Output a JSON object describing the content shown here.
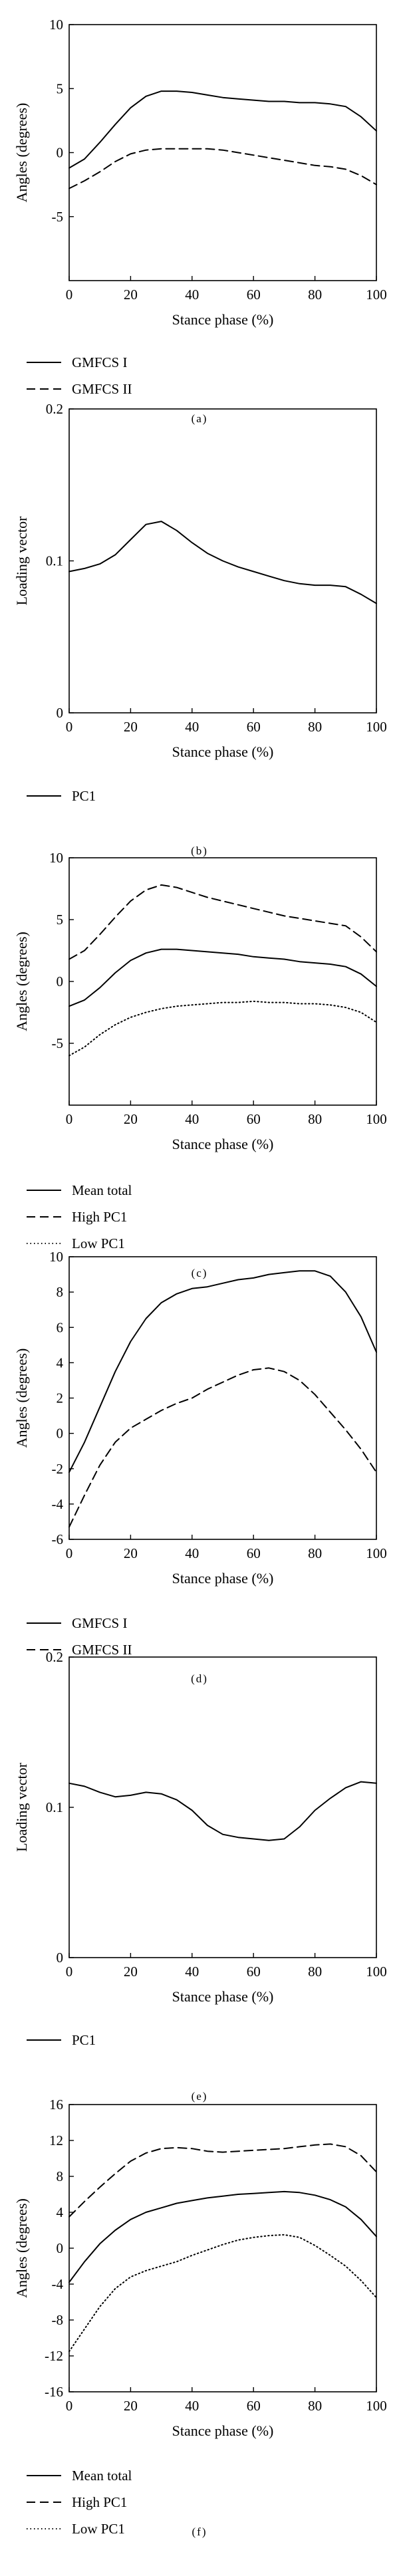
{
  "chart_data": [
    {
      "panel": "(a)",
      "type": "line",
      "xlabel": "Stance phase (%)",
      "ylabel": "Angles (degrees)",
      "xlim": [
        0,
        100
      ],
      "ylim": [
        -10,
        10
      ],
      "xticks": [
        "0",
        "20",
        "40",
        "60",
        "80",
        "100"
      ],
      "yticks": [
        "-5",
        "0",
        "5",
        "10"
      ],
      "grid": false,
      "legend_position": "below",
      "x": [
        0,
        5,
        10,
        15,
        20,
        25,
        30,
        35,
        40,
        45,
        50,
        55,
        60,
        65,
        70,
        75,
        80,
        85,
        90,
        95,
        100
      ],
      "series": [
        {
          "name": "GMFCS I",
          "style": "solid",
          "values": [
            -1.2,
            -0.5,
            0.8,
            2.2,
            3.5,
            4.4,
            4.8,
            4.8,
            4.7,
            4.5,
            4.3,
            4.2,
            4.1,
            4.0,
            4.0,
            3.9,
            3.9,
            3.8,
            3.6,
            2.8,
            1.7
          ]
        },
        {
          "name": "GMFCS II",
          "style": "dashed",
          "values": [
            -2.8,
            -2.2,
            -1.5,
            -0.7,
            -0.1,
            0.2,
            0.3,
            0.3,
            0.3,
            0.3,
            0.2,
            0.0,
            -0.2,
            -0.4,
            -0.6,
            -0.8,
            -1.0,
            -1.1,
            -1.3,
            -1.8,
            -2.5
          ]
        }
      ]
    },
    {
      "panel": "(b)",
      "type": "line",
      "xlabel": "Stance phase (%)",
      "ylabel": "Loading vector",
      "xlim": [
        0,
        100
      ],
      "ylim": [
        0,
        0.2
      ],
      "xticks": [
        "0",
        "20",
        "40",
        "60",
        "80",
        "100"
      ],
      "yticks": [
        "0",
        "0.1",
        "0.2"
      ],
      "grid": false,
      "legend_position": "below",
      "x": [
        0,
        5,
        10,
        15,
        20,
        25,
        30,
        35,
        40,
        45,
        50,
        55,
        60,
        65,
        70,
        75,
        80,
        85,
        90,
        95,
        100
      ],
      "series": [
        {
          "name": "PC1",
          "style": "solid",
          "values": [
            0.093,
            0.095,
            0.098,
            0.104,
            0.114,
            0.124,
            0.126,
            0.12,
            0.112,
            0.105,
            0.1,
            0.096,
            0.093,
            0.09,
            0.087,
            0.085,
            0.084,
            0.084,
            0.083,
            0.078,
            0.072
          ]
        }
      ]
    },
    {
      "panel": "(c)",
      "type": "line",
      "xlabel": "Stance phase (%)",
      "ylabel": "Angles (degrees)",
      "xlim": [
        0,
        100
      ],
      "ylim": [
        -10,
        10
      ],
      "xticks": [
        "0",
        "20",
        "40",
        "60",
        "80",
        "100"
      ],
      "yticks": [
        "-5",
        "0",
        "5",
        "10"
      ],
      "grid": false,
      "legend_position": "below",
      "x": [
        0,
        5,
        10,
        15,
        20,
        25,
        30,
        35,
        40,
        45,
        50,
        55,
        60,
        65,
        70,
        75,
        80,
        85,
        90,
        95,
        100
      ],
      "series": [
        {
          "name": "Mean total",
          "style": "solid",
          "values": [
            -2.0,
            -1.5,
            -0.5,
            0.7,
            1.7,
            2.3,
            2.6,
            2.6,
            2.5,
            2.4,
            2.3,
            2.2,
            2.0,
            1.9,
            1.8,
            1.6,
            1.5,
            1.4,
            1.2,
            0.6,
            -0.4
          ]
        },
        {
          "name": "High PC1",
          "style": "dashed",
          "values": [
            1.8,
            2.5,
            3.8,
            5.2,
            6.5,
            7.4,
            7.8,
            7.6,
            7.2,
            6.8,
            6.5,
            6.2,
            5.9,
            5.6,
            5.3,
            5.1,
            4.9,
            4.7,
            4.5,
            3.6,
            2.4
          ]
        },
        {
          "name": "Low PC1",
          "style": "dotted",
          "values": [
            -6.0,
            -5.3,
            -4.3,
            -3.5,
            -2.9,
            -2.5,
            -2.2,
            -2.0,
            -1.9,
            -1.8,
            -1.7,
            -1.7,
            -1.6,
            -1.7,
            -1.7,
            -1.8,
            -1.8,
            -1.9,
            -2.1,
            -2.5,
            -3.3
          ]
        }
      ]
    },
    {
      "panel": "(d)",
      "type": "line",
      "xlabel": "Stance phase (%)",
      "ylabel": "Angles (degrees)",
      "xlim": [
        0,
        100
      ],
      "ylim": [
        -6,
        10
      ],
      "xticks": [
        "0",
        "20",
        "40",
        "60",
        "80",
        "100"
      ],
      "yticks": [
        "-6",
        "-4",
        "-2",
        "0",
        "2",
        "4",
        "6",
        "8",
        "10"
      ],
      "grid": false,
      "legend_position": "below",
      "x": [
        0,
        5,
        10,
        15,
        20,
        25,
        30,
        35,
        40,
        45,
        50,
        55,
        60,
        65,
        70,
        75,
        80,
        85,
        90,
        95,
        100
      ],
      "series": [
        {
          "name": "GMFCS I",
          "style": "solid",
          "values": [
            -2.2,
            -0.5,
            1.5,
            3.5,
            5.2,
            6.5,
            7.4,
            7.9,
            8.2,
            8.3,
            8.5,
            8.7,
            8.8,
            9.0,
            9.1,
            9.2,
            9.2,
            8.9,
            8.0,
            6.6,
            4.6
          ]
        },
        {
          "name": "GMFCS II",
          "style": "dashed",
          "values": [
            -5.3,
            -3.5,
            -1.8,
            -0.5,
            0.3,
            0.8,
            1.3,
            1.7,
            2.0,
            2.5,
            2.9,
            3.3,
            3.6,
            3.7,
            3.5,
            3.0,
            2.2,
            1.2,
            0.2,
            -0.9,
            -2.2
          ]
        }
      ]
    },
    {
      "panel": "(e)",
      "type": "line",
      "xlabel": "Stance phase (%)",
      "ylabel": "Loading vector",
      "xlim": [
        0,
        100
      ],
      "ylim": [
        0,
        0.2
      ],
      "xticks": [
        "0",
        "20",
        "40",
        "60",
        "80",
        "100"
      ],
      "yticks": [
        "0",
        "0.1",
        "0.2"
      ],
      "grid": false,
      "legend_position": "below",
      "x": [
        0,
        5,
        10,
        15,
        20,
        25,
        30,
        35,
        40,
        45,
        50,
        55,
        60,
        65,
        70,
        75,
        80,
        85,
        90,
        95,
        100
      ],
      "series": [
        {
          "name": "PC1",
          "style": "solid",
          "values": [
            0.116,
            0.114,
            0.11,
            0.107,
            0.108,
            0.11,
            0.109,
            0.105,
            0.098,
            0.088,
            0.082,
            0.08,
            0.079,
            0.078,
            0.079,
            0.087,
            0.098,
            0.106,
            0.113,
            0.117,
            0.116
          ]
        }
      ]
    },
    {
      "panel": "(f)",
      "type": "line",
      "xlabel": "Stance phase (%)",
      "ylabel": "Angles (degrees)",
      "xlim": [
        0,
        100
      ],
      "ylim": [
        -16,
        16
      ],
      "xticks": [
        "0",
        "20",
        "40",
        "60",
        "80",
        "100"
      ],
      "yticks": [
        "-16",
        "-12",
        "-8",
        "-4",
        "0",
        "4",
        "8",
        "12",
        "16"
      ],
      "grid": false,
      "legend_position": "below",
      "x": [
        0,
        5,
        10,
        15,
        20,
        25,
        30,
        35,
        40,
        45,
        50,
        55,
        60,
        65,
        70,
        75,
        80,
        85,
        90,
        95,
        100
      ],
      "series": [
        {
          "name": "Mean total",
          "style": "solid",
          "values": [
            -3.8,
            -1.5,
            0.5,
            2.0,
            3.2,
            4.0,
            4.5,
            5.0,
            5.3,
            5.6,
            5.8,
            6.0,
            6.1,
            6.2,
            6.3,
            6.2,
            5.9,
            5.4,
            4.6,
            3.2,
            1.3
          ]
        },
        {
          "name": "High PC1",
          "style": "dashed",
          "values": [
            3.5,
            5.2,
            6.8,
            8.3,
            9.7,
            10.6,
            11.1,
            11.2,
            11.1,
            10.8,
            10.7,
            10.8,
            10.9,
            11.0,
            11.1,
            11.3,
            11.5,
            11.6,
            11.3,
            10.3,
            8.5
          ]
        },
        {
          "name": "Low PC1",
          "style": "dotted",
          "values": [
            -11.5,
            -9.0,
            -6.5,
            -4.5,
            -3.2,
            -2.5,
            -2.0,
            -1.5,
            -0.8,
            -0.2,
            0.4,
            0.9,
            1.2,
            1.4,
            1.5,
            1.2,
            0.3,
            -0.8,
            -2.0,
            -3.6,
            -5.5
          ]
        }
      ]
    }
  ]
}
